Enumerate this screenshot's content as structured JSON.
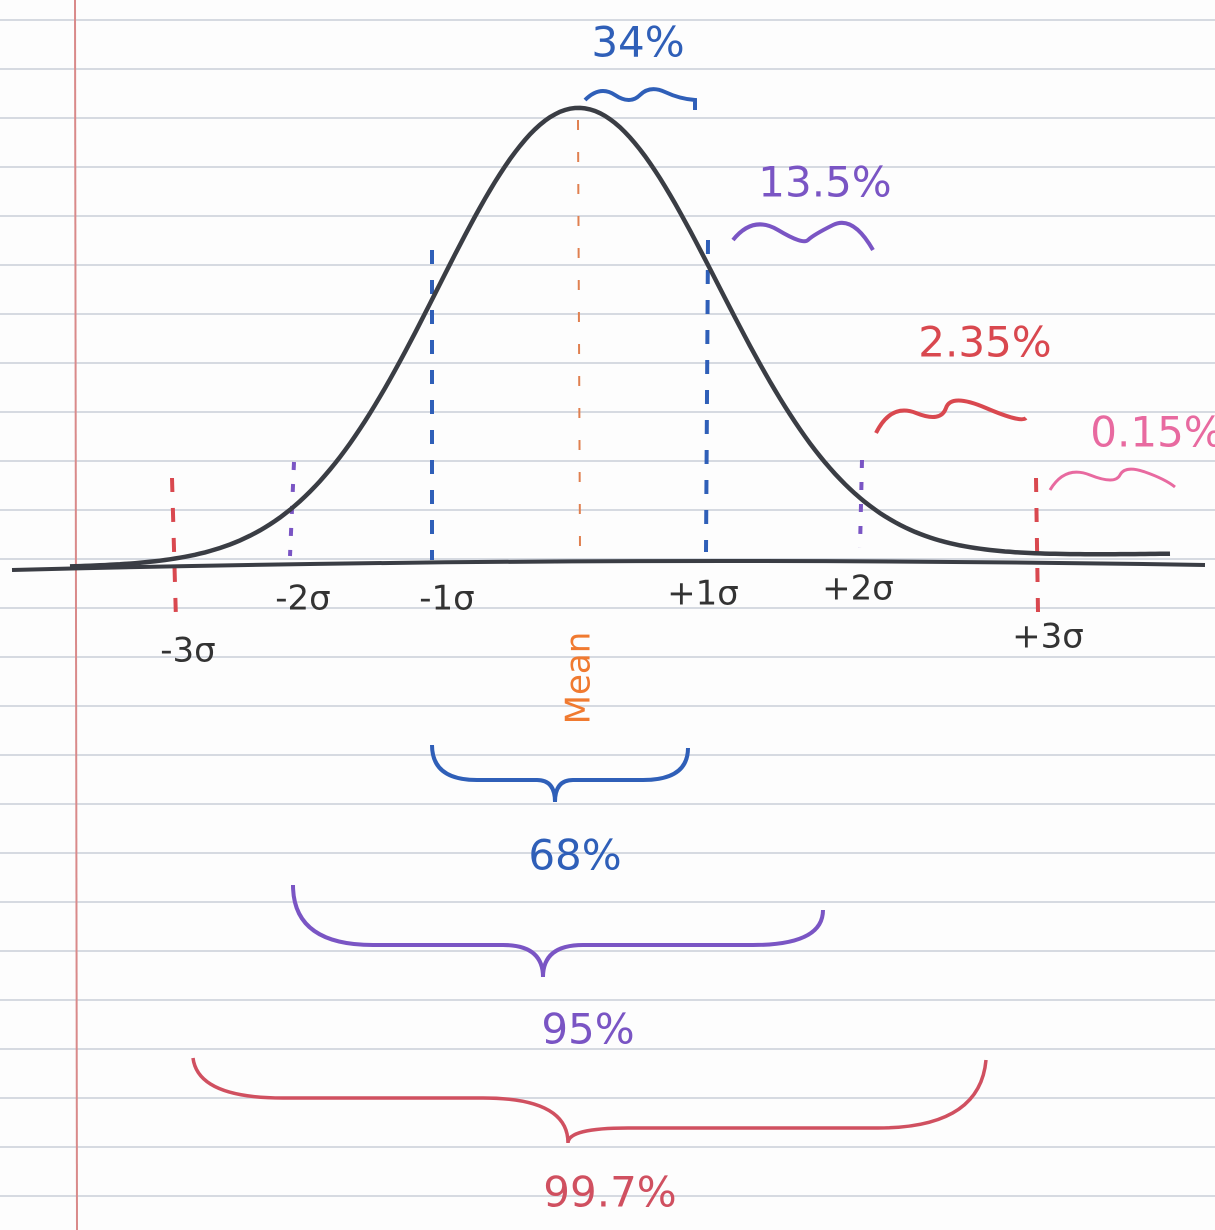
{
  "peak_label": "34%",
  "band_labels": [
    "13.5%",
    "2.35%",
    "0.15%"
  ],
  "axis_labels": [
    "-3σ",
    "-2σ",
    "-1σ",
    "+1σ",
    "+2σ",
    "+3σ"
  ],
  "mean_label": "Mean",
  "ranges": [
    "68%",
    "95%",
    "99.7%"
  ]
}
